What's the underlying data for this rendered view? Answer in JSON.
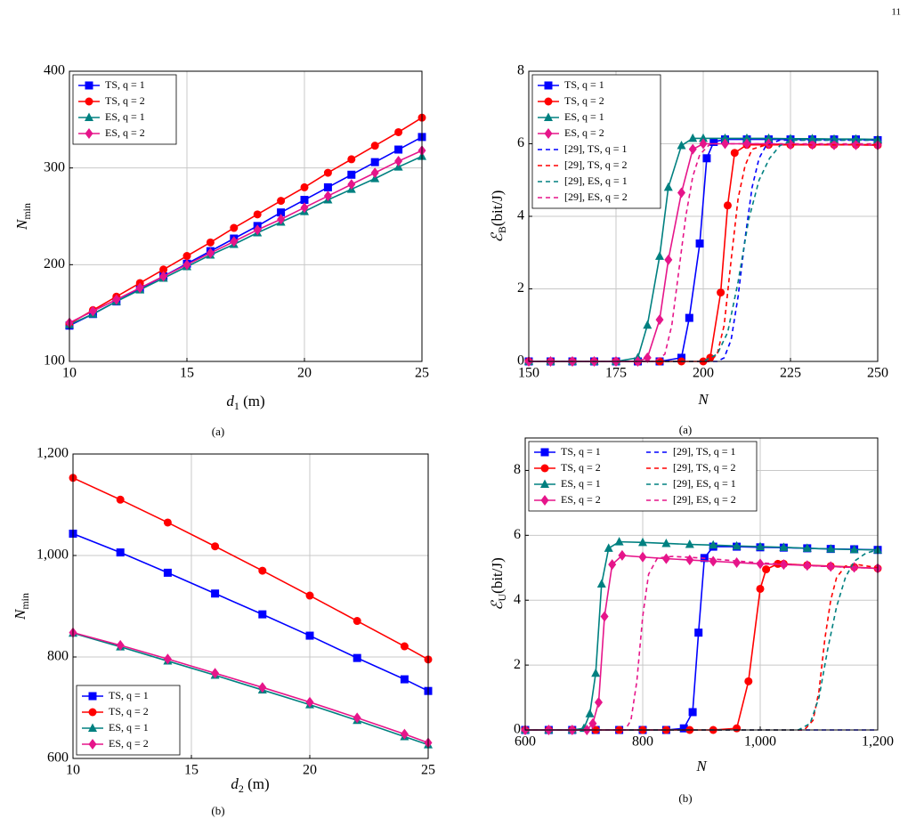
{
  "page_number": "11",
  "chart_data": [
    {
      "type": "line",
      "caption": "(a)",
      "xlabel": [
        "d",
        "1",
        " (m)"
      ],
      "ylabel": [
        "N",
        "min"
      ],
      "xlim": [
        10,
        25
      ],
      "ylim": [
        100,
        400
      ],
      "xticks": [
        10,
        15,
        20,
        25
      ],
      "yticks": [
        100,
        200,
        300,
        400
      ],
      "grid": true,
      "legend": {
        "position": "upper left",
        "columns": 1
      },
      "x": [
        10,
        11,
        12,
        13,
        14,
        15,
        16,
        17,
        18,
        19,
        20,
        21,
        22,
        23,
        24,
        25
      ],
      "series": [
        {
          "name": "TS, q = 1",
          "color": "#0000ff",
          "marker": "square",
          "values": [
            137,
            149,
            162,
            175,
            188,
            201,
            214,
            227,
            240,
            254,
            267,
            280,
            293,
            306,
            319,
            332
          ]
        },
        {
          "name": "TS, q = 2",
          "color": "#ff0000",
          "marker": "circle",
          "values": [
            139,
            153,
            167,
            181,
            195,
            209,
            223,
            238,
            252,
            266,
            280,
            295,
            309,
            323,
            337,
            352
          ]
        },
        {
          "name": "ES, q = 1",
          "color": "#008080",
          "marker": "triangle",
          "values": [
            138,
            149,
            162,
            174,
            186,
            198,
            210,
            221,
            233,
            244,
            255,
            267,
            278,
            289,
            301,
            312
          ]
        },
        {
          "name": "ES, q = 2",
          "color": "#e6158a",
          "marker": "diamond",
          "values": [
            140,
            152,
            164,
            176,
            188,
            200,
            212,
            224,
            236,
            247,
            259,
            271,
            283,
            295,
            307,
            318
          ]
        }
      ]
    },
    {
      "type": "line",
      "caption": "(b)",
      "xlabel": [
        "d",
        "2",
        " (m)"
      ],
      "ylabel": [
        "N",
        "min"
      ],
      "xlim": [
        10,
        25
      ],
      "ylim": [
        600,
        1200
      ],
      "xticks": [
        10,
        15,
        20,
        25
      ],
      "yticks": [
        600,
        800,
        {
          "value": 1000,
          "label": "1,000"
        },
        {
          "value": 1200,
          "label": "1,200"
        }
      ],
      "grid": true,
      "legend": {
        "position": "lower left",
        "columns": 1
      },
      "x": [
        10,
        12,
        14,
        16,
        18,
        20,
        22,
        24,
        25
      ],
      "series": [
        {
          "name": "TS, q = 1",
          "color": "#0000ff",
          "marker": "square",
          "values": [
            1043,
            1006,
            966,
            925,
            884,
            842,
            798,
            756,
            733
          ]
        },
        {
          "name": "TS, q = 2",
          "color": "#ff0000",
          "marker": "circle",
          "values": [
            1153,
            1110,
            1065,
            1018,
            970,
            921,
            871,
            821,
            795
          ]
        },
        {
          "name": "ES, q = 1",
          "color": "#008080",
          "marker": "triangle",
          "values": [
            847,
            820,
            792,
            764,
            735,
            706,
            675,
            643,
            627
          ]
        },
        {
          "name": "ES, q = 2",
          "color": "#e6158a",
          "marker": "diamond",
          "values": [
            848,
            823,
            796,
            768,
            740,
            711,
            680,
            648,
            631
          ]
        }
      ]
    },
    {
      "type": "line",
      "caption": "(a)",
      "xlabel": [
        "N"
      ],
      "ylabel": [
        "ℰ",
        "B",
        "(bit/J)"
      ],
      "xlim": [
        150,
        250
      ],
      "ylim": [
        0,
        8
      ],
      "xticks": [
        150,
        175,
        200,
        225,
        250
      ],
      "yticks": [
        0,
        2,
        4,
        6,
        8
      ],
      "grid": true,
      "legend": {
        "position": "upper left",
        "columns": 1
      },
      "series": [
        {
          "name": "TS, q = 1",
          "color": "#0000ff",
          "marker": "square",
          "x": [
            150,
            156.25,
            162.5,
            168.75,
            175,
            181.25,
            187.5,
            193.75,
            196,
            199,
            201,
            203,
            206.25,
            212.5,
            218.75,
            225,
            231.25,
            237.5,
            243.75,
            250
          ],
          "values": [
            0,
            0,
            0,
            0,
            0,
            0,
            0,
            0.1,
            1.2,
            3.25,
            5.6,
            6.05,
            6.12,
            6.12,
            6.12,
            6.12,
            6.12,
            6.12,
            6.12,
            6.1
          ]
        },
        {
          "name": "TS, q = 2",
          "color": "#ff0000",
          "marker": "circle",
          "x": [
            150,
            156.25,
            162.5,
            168.75,
            175,
            181.25,
            187.5,
            193.75,
            200,
            202,
            205,
            207,
            209,
            212.5,
            218.75,
            225,
            231.25,
            237.5,
            243.75,
            250
          ],
          "values": [
            0,
            0,
            0,
            0,
            0,
            0,
            0,
            0,
            0,
            0.1,
            1.9,
            4.3,
            5.75,
            5.97,
            5.97,
            5.97,
            5.97,
            5.97,
            5.97,
            5.96
          ]
        },
        {
          "name": "ES, q = 1",
          "color": "#008080",
          "marker": "triangle",
          "x": [
            150,
            156.25,
            162.5,
            168.75,
            175,
            181.25,
            184,
            187.5,
            190,
            193.75,
            197,
            200,
            206.25,
            212.5,
            218.75,
            225,
            231.25,
            237.5,
            243.75,
            250
          ],
          "values": [
            0,
            0,
            0,
            0,
            0,
            0.1,
            1.0,
            2.9,
            4.8,
            5.95,
            6.15,
            6.15,
            6.15,
            6.15,
            6.15,
            6.14,
            6.14,
            6.13,
            6.13,
            6.12
          ]
        },
        {
          "name": "ES, q = 2",
          "color": "#e6158a",
          "marker": "diamond",
          "x": [
            150,
            156.25,
            162.5,
            168.75,
            175,
            181.25,
            184,
            187.5,
            190,
            193.75,
            197,
            200,
            206.25,
            212.5,
            218.75,
            225,
            231.25,
            237.5,
            243.75,
            250
          ],
          "values": [
            0,
            0,
            0,
            0,
            0,
            0,
            0.1,
            1.15,
            2.8,
            4.65,
            5.85,
            6.0,
            6.0,
            6.0,
            6.0,
            5.98,
            5.98,
            5.97,
            5.97,
            5.96
          ]
        },
        {
          "name": "[29], TS, q = 1",
          "color": "#0000ff",
          "dash": true,
          "x": [
            150,
            204,
            206,
            208,
            210,
            212,
            214,
            216,
            218,
            222,
            250
          ],
          "values": [
            0,
            0,
            0.1,
            0.6,
            1.8,
            3.4,
            4.8,
            5.6,
            5.95,
            6.1,
            6.1
          ]
        },
        {
          "name": "[29], TS, q = 2",
          "color": "#ff0000",
          "dash": true,
          "x": [
            150,
            202,
            204,
            206,
            208,
            210,
            212,
            214,
            218,
            250
          ],
          "values": [
            0,
            0,
            0.2,
            1.0,
            2.8,
            4.5,
            5.4,
            5.85,
            5.97,
            5.97
          ]
        },
        {
          "name": "[29], ES, q = 1",
          "color": "#008080",
          "dash": true,
          "x": [
            150,
            200,
            204,
            207,
            210,
            213,
            216,
            219,
            222,
            226,
            250
          ],
          "values": [
            0,
            0,
            0.2,
            0.8,
            2.2,
            3.9,
            5.0,
            5.6,
            5.95,
            6.1,
            6.1
          ]
        },
        {
          "name": "[29], ES, q = 2",
          "color": "#e6158a",
          "dash": true,
          "x": [
            150,
            186,
            189,
            191,
            193,
            195,
            197,
            199,
            202,
            250
          ],
          "values": [
            0,
            0,
            0.2,
            1.0,
            2.5,
            4.0,
            5.1,
            5.7,
            6.0,
            6.0
          ]
        }
      ]
    },
    {
      "type": "line",
      "caption": "(b)",
      "xlabel": [
        "N"
      ],
      "ylabel": [
        "ℰ",
        "U",
        "(bit/J)"
      ],
      "xlim": [
        600,
        1200
      ],
      "ylim": [
        0,
        9
      ],
      "xticks": [
        600,
        800,
        {
          "value": 1000,
          "label": "1,000"
        },
        {
          "value": 1200,
          "label": "1,200"
        }
      ],
      "yticks": [
        0,
        2,
        4,
        6,
        8
      ],
      "grid": true,
      "legend": {
        "position": "upper left",
        "columns": 2
      },
      "series": [
        {
          "name": "TS, q = 1",
          "color": "#0000ff",
          "marker": "square",
          "x": [
            600,
            640,
            680,
            720,
            760,
            800,
            840,
            870,
            885,
            895,
            905,
            920,
            960,
            1000,
            1040,
            1080,
            1120,
            1160,
            1200
          ],
          "values": [
            0,
            0,
            0,
            0,
            0,
            0,
            0,
            0.05,
            0.55,
            3.0,
            5.3,
            5.65,
            5.65,
            5.63,
            5.62,
            5.6,
            5.58,
            5.57,
            5.55
          ]
        },
        {
          "name": "TS, q = 2",
          "color": "#ff0000",
          "marker": "circle",
          "x": [
            600,
            640,
            680,
            720,
            760,
            800,
            840,
            880,
            920,
            960,
            980,
            1000,
            1010,
            1030,
            1040,
            1080,
            1120,
            1160,
            1200
          ],
          "values": [
            0,
            0,
            0,
            0,
            0,
            0,
            0,
            0,
            0,
            0.05,
            1.5,
            4.35,
            4.95,
            5.12,
            5.12,
            5.08,
            5.05,
            5.02,
            4.98
          ]
        },
        {
          "name": "ES, q = 1",
          "color": "#008080",
          "marker": "triangle",
          "x": [
            600,
            640,
            680,
            700,
            710,
            720,
            730,
            742,
            760,
            800,
            840,
            880,
            920,
            960,
            1000,
            1040,
            1080,
            1120,
            1160,
            1200
          ],
          "values": [
            0,
            0,
            0,
            0.05,
            0.5,
            1.75,
            4.5,
            5.6,
            5.8,
            5.78,
            5.75,
            5.72,
            5.7,
            5.67,
            5.65,
            5.63,
            5.6,
            5.58,
            5.56,
            5.55
          ]
        },
        {
          "name": "ES, q = 2",
          "color": "#e6158a",
          "marker": "diamond",
          "x": [
            600,
            640,
            680,
            705,
            715,
            725,
            735,
            748,
            765,
            800,
            840,
            880,
            920,
            960,
            1000,
            1040,
            1080,
            1120,
            1160,
            1200
          ],
          "values": [
            0,
            0,
            0,
            0,
            0.2,
            0.85,
            3.5,
            5.1,
            5.38,
            5.33,
            5.28,
            5.24,
            5.2,
            5.16,
            5.12,
            5.1,
            5.07,
            5.04,
            5.01,
            4.98
          ]
        },
        {
          "name": "[29], TS, q = 1",
          "color": "#0000ff",
          "dash": true,
          "x": [
            600,
            1200
          ],
          "values": [
            0,
            0
          ]
        },
        {
          "name": "[29], TS, q = 2",
          "color": "#ff0000",
          "dash": true,
          "x": [
            600,
            1075,
            1090,
            1100,
            1110,
            1120,
            1130,
            1145,
            1165,
            1200
          ],
          "values": [
            0,
            0,
            0.3,
            1.2,
            2.8,
            4.0,
            4.7,
            5.05,
            5.1,
            5.0
          ]
        },
        {
          "name": "[29], ES, q = 1",
          "color": "#008080",
          "dash": true,
          "x": [
            600,
            1065,
            1085,
            1100,
            1115,
            1130,
            1145,
            1160,
            1180,
            1200
          ],
          "values": [
            0,
            0,
            0.2,
            1.0,
            2.5,
            3.8,
            4.7,
            5.2,
            5.45,
            5.55
          ]
        },
        {
          "name": "[29], ES, q = 2",
          "color": "#e6158a",
          "dash": true,
          "x": [
            600,
            770,
            780,
            790,
            800,
            810,
            825,
            850,
            900,
            1000,
            1100,
            1200
          ],
          "values": [
            0,
            0,
            0.3,
            1.5,
            3.5,
            4.8,
            5.3,
            5.35,
            5.3,
            5.15,
            5.05,
            4.98
          ]
        }
      ]
    }
  ]
}
